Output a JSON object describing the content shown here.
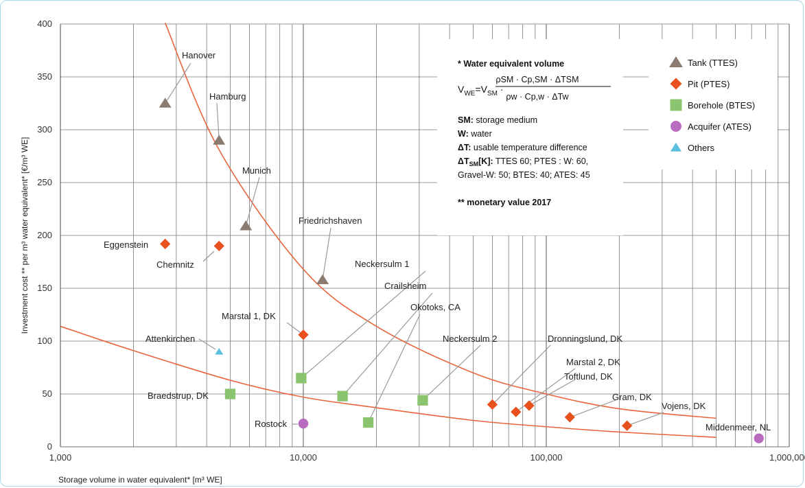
{
  "chart_data": {
    "type": "scatter",
    "title": "",
    "xlabel": "Storage volume in water equivalent* [m³ WE]",
    "ylabel": "Investment cost ** per m³ water equivalent* [€/m³ WE]",
    "xscale": "log",
    "xlim": [
      1000,
      1000000
    ],
    "ylim": [
      0,
      400
    ],
    "x_ticks": [
      1000,
      10000,
      100000,
      1000000
    ],
    "x_tick_labels": [
      "1,000",
      "10,000",
      "100,000",
      "1,000,000"
    ],
    "y_ticks": [
      0,
      50,
      100,
      150,
      200,
      250,
      300,
      350,
      400
    ],
    "grid": true,
    "legend_position": "top-right",
    "series": [
      {
        "name": "Tank (TTES)",
        "marker": "triangle",
        "color": "#8c7b70",
        "points": [
          {
            "label": "Hanover",
            "x": 2700,
            "y": 325
          },
          {
            "label": "Hamburg",
            "x": 4500,
            "y": 290
          },
          {
            "label": "Munich",
            "x": 5800,
            "y": 209
          },
          {
            "label": "Friedrichshaven",
            "x": 12000,
            "y": 158
          }
        ]
      },
      {
        "name": "Pit (PTES)",
        "marker": "diamond",
        "color": "#e8501e",
        "points": [
          {
            "label": "Eggenstein",
            "x": 2700,
            "y": 192
          },
          {
            "label": "Chemnitz",
            "x": 4500,
            "y": 190
          },
          {
            "label": "Marstal 1, DK",
            "x": 10000,
            "y": 106
          },
          {
            "label": "Dronningslund, DK",
            "x": 60000,
            "y": 40
          },
          {
            "label": "Marstal 2, DK",
            "x": 75000,
            "y": 33
          },
          {
            "label": "Toftlund, DK",
            "x": 85000,
            "y": 39
          },
          {
            "label": "Gram, DK",
            "x": 125000,
            "y": 28
          },
          {
            "label": "Vojens, DK",
            "x": 215000,
            "y": 20
          }
        ]
      },
      {
        "name": "Borehole (BTES)",
        "marker": "square",
        "color": "#8bc46f",
        "points": [
          {
            "label": "Braedstrup, DK",
            "x": 5000,
            "y": 50
          },
          {
            "label": "Neckersulm 1",
            "x": 9800,
            "y": 65
          },
          {
            "label": "Crailsheim",
            "x": 14500,
            "y": 48
          },
          {
            "label": "Okotoks, CA",
            "x": 18500,
            "y": 23
          },
          {
            "label": "Neckersulm 2",
            "x": 31000,
            "y": 44
          }
        ]
      },
      {
        "name": "Acquifer (ATES)",
        "marker": "circle",
        "color": "#b96bbf",
        "points": [
          {
            "label": "Rostock",
            "x": 10000,
            "y": 22
          },
          {
            "label": "Middenmeer, NL",
            "x": 750000,
            "y": 8
          }
        ]
      },
      {
        "name": "Others",
        "marker": "triangle",
        "color": "#5bc0de",
        "points": [
          {
            "label": "Attenkirchen",
            "x": 4500,
            "y": 90
          }
        ]
      }
    ],
    "trend_curves": [
      {
        "color": "#e8643c",
        "x": [
          2700,
          4500,
          10000,
          20000,
          50000,
          100000,
          200000,
          500000
        ],
        "y": [
          401,
          281,
          168,
          114,
          70,
          50,
          36,
          27
        ]
      },
      {
        "color": "#e8643c",
        "x": [
          1000,
          2000,
          5000,
          10000,
          20000,
          50000,
          100000,
          200000,
          500000
        ],
        "y": [
          114,
          91,
          63,
          47,
          37,
          25,
          19,
          14,
          9
        ]
      }
    ]
  },
  "note": {
    "line1": "* Water equivalent volume",
    "formula_lhs": "V",
    "formula_lhs_sub": "WE",
    "formula_eq": "=V",
    "formula_rhs_sub": "SM",
    "formula_num": "ρSM · Cp,SM · ΔTSM",
    "formula_den": "ρw · Cp,w · ΔTw",
    "sm_key": "SM:",
    "sm_val": "storage medium",
    "w_key": "W:",
    "w_val": "water",
    "dt_key": "ΔT:",
    "dt_val": "usable temperature difference",
    "dtsm_key": "ΔT",
    "dtsm_key_sub": "SM",
    "dtsm_key_unit": "[K]:",
    "dtsm_val1": "TTES 60; PTES : W: 60,",
    "dtsm_val2": "Gravel-W: 50; BTES: 40; ATES: 45",
    "monetary": "** monetary value 2017"
  }
}
